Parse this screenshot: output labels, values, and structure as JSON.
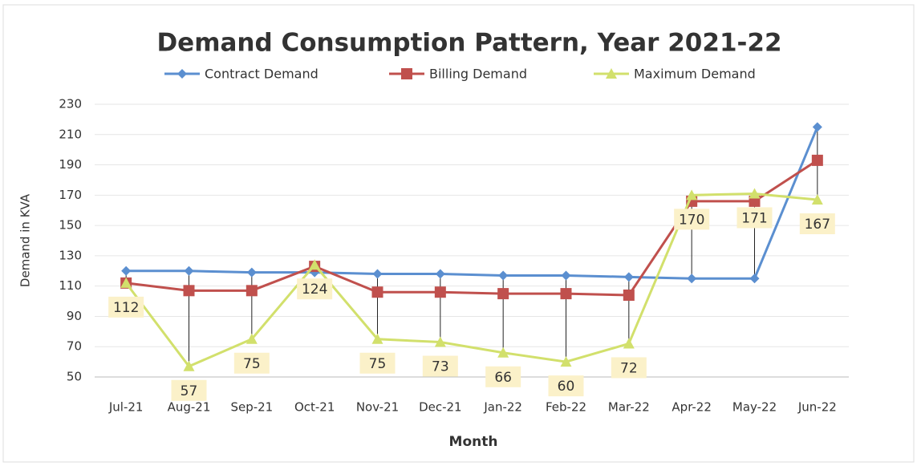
{
  "chart_data": {
    "type": "line",
    "title": "Demand Consumption Pattern, Year 2021-22",
    "x_label": "Month",
    "y_label": "Demand in KVA",
    "categories": [
      "Jul-21",
      "Aug-21",
      "Sep-21",
      "Oct-21",
      "Nov-21",
      "Dec-21",
      "Jan-22",
      "Feb-22",
      "Mar-22",
      "Apr-22",
      "May-22",
      "Jun-22"
    ],
    "series": [
      {
        "name": "Contract Demand",
        "color": "#5b8fd0",
        "marker": "diamond",
        "values": [
          120,
          120,
          119,
          119,
          118,
          118,
          117,
          117,
          116,
          115,
          115,
          215
        ]
      },
      {
        "name": "Billing Demand",
        "color": "#c0504d",
        "marker": "square",
        "values": [
          112,
          107,
          107,
          123,
          106,
          106,
          105,
          105,
          104,
          166,
          166,
          193
        ]
      },
      {
        "name": "Maximum Demand",
        "color": "#d2e06c",
        "marker": "triangle",
        "values": [
          112,
          57,
          75,
          124,
          75,
          73,
          66,
          60,
          72,
          170,
          171,
          167
        ],
        "data_labels": true
      }
    ],
    "ylim": [
      50,
      230
    ],
    "yticks": [
      50,
      70,
      90,
      110,
      130,
      150,
      170,
      190,
      210,
      230
    ],
    "grid": true,
    "high_low_lines": true,
    "legend": "top"
  }
}
